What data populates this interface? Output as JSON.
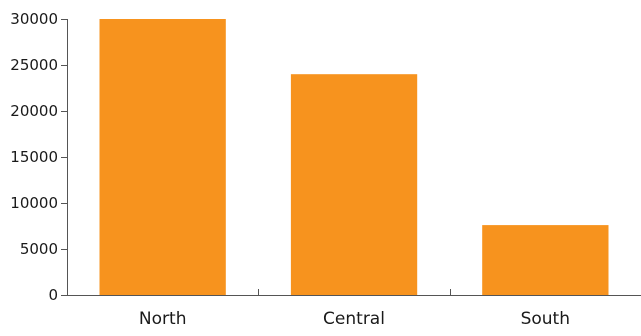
{
  "chart_data": {
    "type": "bar",
    "categories": [
      "North",
      "Central",
      "South"
    ],
    "values": [
      30000,
      24000,
      7600
    ],
    "title": "",
    "xlabel": "",
    "ylabel": "",
    "ylim": [
      0,
      30000
    ],
    "yticks": [
      0,
      5000,
      10000,
      15000,
      20000,
      25000,
      30000
    ],
    "grid": false,
    "legend": "none",
    "bar_color": "#F7931E",
    "axis_color": "#555555"
  }
}
